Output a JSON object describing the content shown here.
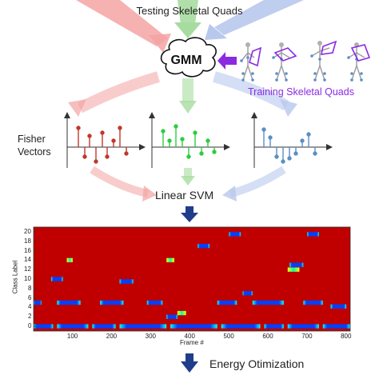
{
  "diagram": {
    "top_label": "Testing Skeletal Quads",
    "gmm_label": "GMM",
    "training_label": "Training Skeletal Quads",
    "fisher_label_line1": "Fisher",
    "fisher_label_line2": "Vectors",
    "svm_label": "Linear SVM",
    "energy_label": "Energy Otimization",
    "colors": {
      "red_stream": "#f4a3a3",
      "green_stream": "#a7dca0",
      "blue_stream": "#b8c8ec",
      "purple": "#8a2be2",
      "fisher_red": "#c0392b",
      "fisher_green": "#2ecc40",
      "fisher_blue": "#5b8fc7",
      "arrow_navy": "#1f3d8a"
    }
  },
  "chart_data": {
    "type": "heatmap",
    "xlabel": "Frame #",
    "ylabel": "Class Label",
    "xlim": [
      0,
      810
    ],
    "ylim": [
      -1,
      21
    ],
    "x_ticks": [
      100,
      200,
      300,
      400,
      500,
      600,
      700,
      800
    ],
    "y_ticks": [
      0,
      2,
      4,
      6,
      8,
      10,
      12,
      14,
      16,
      18,
      20
    ],
    "background_level": "high",
    "segments": [
      {
        "y": 0,
        "x0": 0,
        "x1": 50,
        "level": "low"
      },
      {
        "y": 0,
        "x0": 60,
        "x1": 140,
        "level": "low"
      },
      {
        "y": 0,
        "x0": 150,
        "x1": 210,
        "level": "low"
      },
      {
        "y": 0,
        "x0": 220,
        "x1": 340,
        "level": "low"
      },
      {
        "y": 0,
        "x0": 350,
        "x1": 470,
        "level": "low"
      },
      {
        "y": 0,
        "x0": 480,
        "x1": 580,
        "level": "low"
      },
      {
        "y": 0,
        "x0": 590,
        "x1": 640,
        "level": "low"
      },
      {
        "y": 0,
        "x0": 650,
        "x1": 730,
        "level": "low"
      },
      {
        "y": 0,
        "x0": 740,
        "x1": 810,
        "level": "low"
      },
      {
        "y": 2,
        "x0": 340,
        "x1": 368,
        "level": "low"
      },
      {
        "y": 2.8,
        "x0": 368,
        "x1": 390,
        "level": "mid"
      },
      {
        "y": 5,
        "x0": 0,
        "x1": 20,
        "level": "low"
      },
      {
        "y": 5,
        "x0": 60,
        "x1": 120,
        "level": "low"
      },
      {
        "y": 5,
        "x0": 170,
        "x1": 230,
        "level": "low"
      },
      {
        "y": 5,
        "x0": 290,
        "x1": 330,
        "level": "low"
      },
      {
        "y": 5,
        "x0": 470,
        "x1": 520,
        "level": "low"
      },
      {
        "y": 5,
        "x0": 560,
        "x1": 640,
        "level": "low"
      },
      {
        "y": 5,
        "x0": 690,
        "x1": 740,
        "level": "low"
      },
      {
        "y": 4.2,
        "x0": 760,
        "x1": 800,
        "level": "low"
      },
      {
        "y": 7,
        "x0": 535,
        "x1": 560,
        "level": "low"
      },
      {
        "y": 9.5,
        "x0": 220,
        "x1": 255,
        "level": "low"
      },
      {
        "y": 10,
        "x0": 45,
        "x1": 75,
        "level": "low"
      },
      {
        "y": 13,
        "x0": 655,
        "x1": 690,
        "level": "low"
      },
      {
        "y": 17,
        "x0": 420,
        "x1": 450,
        "level": "low"
      },
      {
        "y": 19.5,
        "x0": 500,
        "x1": 530,
        "level": "low"
      },
      {
        "y": 19.5,
        "x0": 700,
        "x1": 730,
        "level": "low"
      },
      {
        "y": 14,
        "x0": 85,
        "x1": 100,
        "level": "mid"
      },
      {
        "y": 14,
        "x0": 340,
        "x1": 360,
        "level": "mid"
      },
      {
        "y": 12,
        "x0": 650,
        "x1": 680,
        "level": "mid"
      }
    ]
  }
}
